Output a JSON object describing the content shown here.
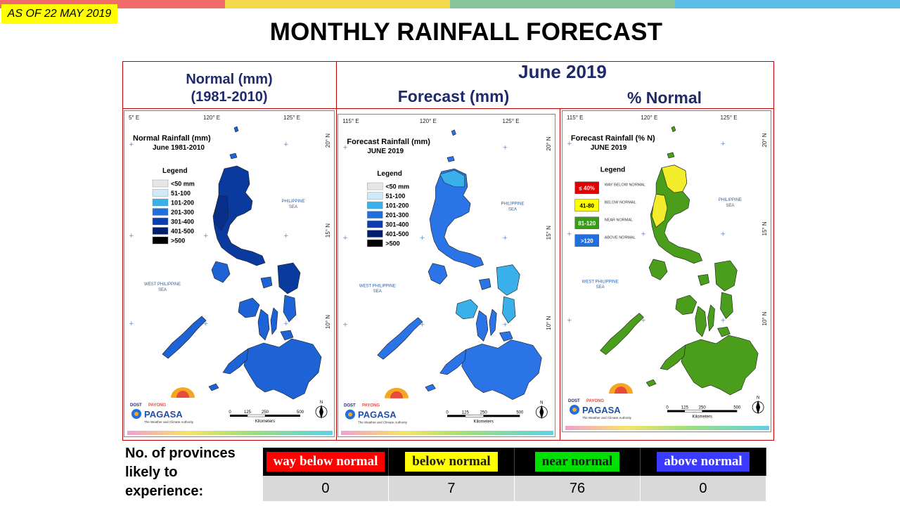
{
  "date_badge": "AS OF 22 MAY 2019",
  "title": "MONTHLY RAINFALL FORECAST",
  "colors": {
    "bar1": "#f26b6b",
    "bar2": "#f5d84a",
    "bar3": "#86c49a",
    "bar4": "#5bbde6",
    "header_text": "#1f2a6b",
    "frame": "#c00000"
  },
  "headers": {
    "normal": "Normal (mm)",
    "normal_period": "(1981-2010)",
    "month": "June 2019",
    "forecast": "Forecast (mm)",
    "percent": "% Normal"
  },
  "panels": {
    "normal": {
      "title": "Normal Rainfall (mm)",
      "subtitle": "June 1981-2010",
      "legend_title": "Legend",
      "legend": [
        {
          "label": "<50 mm",
          "color": "#e6e6e6"
        },
        {
          "label": "51-100",
          "color": "#cfe9f7"
        },
        {
          "label": "101-200",
          "color": "#39b0ea"
        },
        {
          "label": "201-300",
          "color": "#1f6fe0"
        },
        {
          "label": "301-400",
          "color": "#0a3fb0"
        },
        {
          "label": "401-500",
          "color": "#041e6e"
        },
        {
          "label": ">500",
          "color": "#000000"
        }
      ],
      "map_color": "#1e63d6",
      "map_accent": "#0b3a9e",
      "lon_labels": [
        "5° E",
        "120° E",
        "125° E"
      ],
      "lat_labels": [
        "20° N",
        "15° N",
        "10° N"
      ]
    },
    "forecast": {
      "title": "Forecast Rainfall (mm)",
      "subtitle": "JUNE 2019",
      "legend_title": "Legend",
      "legend": [
        {
          "label": "<50 mm",
          "color": "#e6e6e6"
        },
        {
          "label": "51-100",
          "color": "#cfe9f7"
        },
        {
          "label": "101-200",
          "color": "#39b0ea"
        },
        {
          "label": "201-300",
          "color": "#1f6fe0"
        },
        {
          "label": "301-400",
          "color": "#0a3fb0"
        },
        {
          "label": "401-500",
          "color": "#041e6e"
        },
        {
          "label": ">500",
          "color": "#000000"
        }
      ],
      "map_color": "#2a74e8",
      "map_accent": "#39b0ea",
      "lon_labels": [
        "115° E",
        "120° E",
        "125° E"
      ],
      "lat_labels": [
        "20° N",
        "15° N",
        "10° N"
      ]
    },
    "percent": {
      "title": "Forecast Rainfall (% N)",
      "subtitle": "JUNE 2019",
      "legend_title": "Legend",
      "legend": [
        {
          "swatch": "≤ 40%",
          "label": "WAY BELOW NORMAL",
          "color": "#e00000",
          "text_color": "#ffffff"
        },
        {
          "swatch": "41-80",
          "label": "BELOW NORMAL",
          "color": "#ffff00",
          "text_color": "#000000"
        },
        {
          "swatch": "81-120",
          "label": "NEAR NORMAL",
          "color": "#3a9a1a",
          "text_color": "#ffffff"
        },
        {
          "swatch": ">120",
          "label": "ABOVE NORMAL",
          "color": "#1f6fe0",
          "text_color": "#ffffff"
        }
      ],
      "map_color": "#4a9e1c",
      "map_accent": "#f2ec2a",
      "lon_labels": [
        "115° E",
        "120° E",
        "125° E"
      ],
      "lat_labels": [
        "20° N",
        "15° N",
        "10° N"
      ]
    }
  },
  "map_common": {
    "philippine_sea": [
      "PHILIPPINE",
      "SEA"
    ],
    "west_philippine_sea": [
      "WEST PHILIPPINE",
      "SEA"
    ],
    "scale_ticks": [
      "0",
      "125",
      "250",
      "500"
    ],
    "scale_unit": "Kilometers",
    "logo_top": "DOST",
    "logo_payong": "PAYONG",
    "logo_name": "PAGASA",
    "logo_tagline": "The Weather and Climate Authority",
    "north": "N"
  },
  "stats": {
    "label": "No. of provinces likely to experience:",
    "categories": [
      {
        "label": "way below normal",
        "color": "#ff0000",
        "text_color": "#ffffff"
      },
      {
        "label": "below normal",
        "color": "#ffff00",
        "text_color": "#1a1a1a"
      },
      {
        "label": "near normal",
        "color": "#00e000",
        "text_color": "#1a1a1a"
      },
      {
        "label": "above normal",
        "color": "#3b3bff",
        "text_color": "#ffffff"
      }
    ],
    "counts": [
      "0",
      "7",
      "76",
      "0"
    ]
  }
}
